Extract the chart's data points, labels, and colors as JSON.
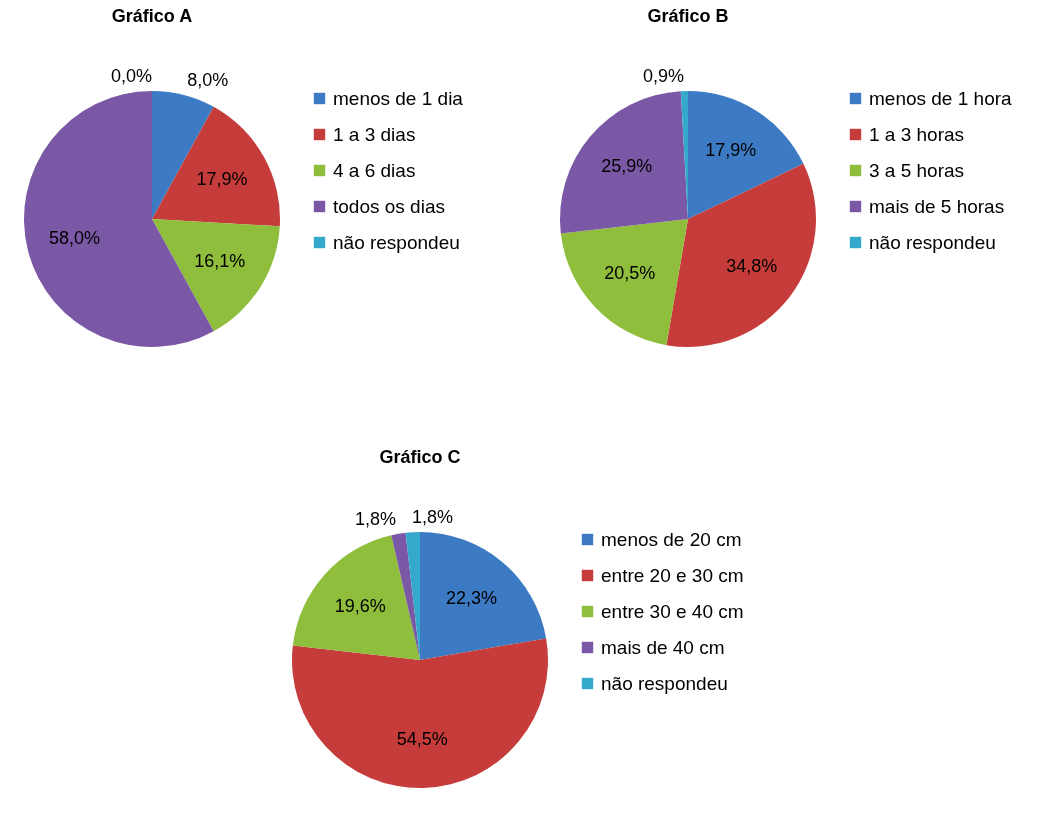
{
  "chart_data": [
    {
      "type": "pie",
      "title": "Gráfico A",
      "categories": [
        "menos de 1 dia",
        "1 a 3 dias",
        "4 a 6 dias",
        "todos os dias",
        "não respondeu"
      ],
      "values": [
        8.0,
        17.9,
        16.1,
        58.0,
        0.0
      ],
      "value_labels": [
        "8,0%",
        "17,9%",
        "16,1%",
        "58,0%",
        "0,0%"
      ],
      "colors": [
        "#3c7ac4",
        "#c53c3a",
        "#8fbd3c",
        "#7a58a5",
        "#35a9cb"
      ],
      "legend": "right"
    },
    {
      "type": "pie",
      "title": "Gráfico B",
      "categories": [
        "menos de 1 hora",
        "1 a 3 horas",
        "3 a 5 horas",
        "mais de 5 horas",
        "não respondeu"
      ],
      "values": [
        17.9,
        34.8,
        20.5,
        25.9,
        0.9
      ],
      "value_labels": [
        "17,9%",
        "34,8%",
        "20,5%",
        "25,9%",
        "0,9%"
      ],
      "colors": [
        "#3c7ac4",
        "#c53c3a",
        "#8fbd3c",
        "#7a58a5",
        "#35a9cb"
      ],
      "legend": "right"
    },
    {
      "type": "pie",
      "title": "Gráfico C",
      "categories": [
        "menos de 20 cm",
        "entre 20 e 30 cm",
        "entre 30 e 40 cm",
        "mais de 40 cm",
        "não respondeu"
      ],
      "values": [
        22.3,
        54.5,
        19.6,
        1.8,
        1.8
      ],
      "value_labels": [
        "22,3%",
        "54,5%",
        "19,6%",
        "1,8%",
        "1,8%"
      ],
      "colors": [
        "#3c7ac4",
        "#c53c3a",
        "#8fbd3c",
        "#7a58a5",
        "#35a9cb"
      ],
      "legend": "right"
    }
  ]
}
